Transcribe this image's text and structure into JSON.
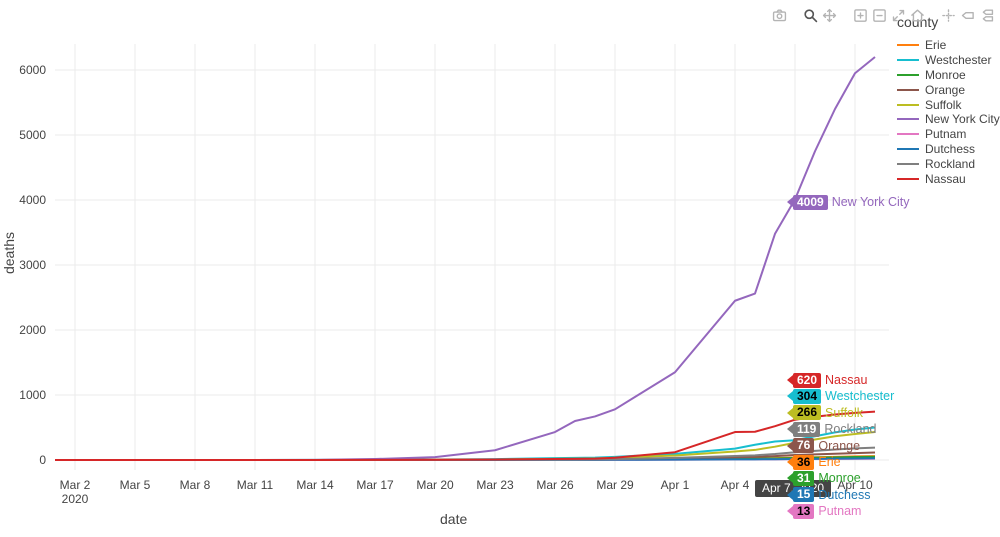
{
  "modebar": {
    "groups": [
      [
        "download-plot-camera"
      ],
      [
        "zoom",
        "pan"
      ],
      [
        "zoom-in",
        "zoom-out",
        "autoscale",
        "reset-axes-home"
      ],
      [
        "toggle-spike-lines",
        "show-closest-on-hover",
        "compare-data-on-hover"
      ]
    ],
    "active_button": "zoom",
    "icon_color": "#b4b4b4",
    "active_color": "#555555"
  },
  "legend": {
    "title": "county",
    "items": [
      {
        "label": "Erie",
        "color": "#ff7f0e",
        "contrast": "#000000"
      },
      {
        "label": "Westchester",
        "color": "#17becf",
        "contrast": "#000000"
      },
      {
        "label": "Monroe",
        "color": "#2ca02c",
        "contrast": "#ffffff"
      },
      {
        "label": "Orange",
        "color": "#8c564b",
        "contrast": "#ffffff"
      },
      {
        "label": "Suffolk",
        "color": "#bcbd22",
        "contrast": "#000000"
      },
      {
        "label": "New York City",
        "color": "#9467bd",
        "contrast": "#ffffff"
      },
      {
        "label": "Putnam",
        "color": "#e377c2",
        "contrast": "#000000"
      },
      {
        "label": "Dutchess",
        "color": "#1f77b4",
        "contrast": "#ffffff"
      },
      {
        "label": "Rockland",
        "color": "#7f7f7f",
        "contrast": "#ffffff"
      },
      {
        "label": "Nassau",
        "color": "#d62728",
        "contrast": "#ffffff"
      }
    ]
  },
  "axes": {
    "x": {
      "title": "date",
      "ticks": [
        {
          "label": "Mar 2",
          "day": 1,
          "year": "2020"
        },
        {
          "label": "Mar 5",
          "day": 4
        },
        {
          "label": "Mar 8",
          "day": 7
        },
        {
          "label": "Mar 11",
          "day": 10
        },
        {
          "label": "Mar 14",
          "day": 13
        },
        {
          "label": "Mar 17",
          "day": 16
        },
        {
          "label": "Mar 20",
          "day": 19
        },
        {
          "label": "Mar 23",
          "day": 22
        },
        {
          "label": "Mar 26",
          "day": 25
        },
        {
          "label": "Mar 29",
          "day": 28
        },
        {
          "label": "Apr 1",
          "day": 31
        },
        {
          "label": "Apr 4",
          "day": 34
        },
        {
          "label": "Apr 7",
          "day": 37
        },
        {
          "label": "Apr 10",
          "day": 40
        }
      ]
    },
    "y": {
      "title": "deaths",
      "ticks": [
        0,
        1000,
        2000,
        3000,
        4000,
        5000,
        6000
      ]
    }
  },
  "hover": {
    "axis_label": "Apr 7, 2020",
    "nyc_point": {
      "county": "New York City",
      "value": "4009"
    },
    "stack": [
      {
        "county": "Nassau",
        "value": "620"
      },
      {
        "county": "Westchester",
        "value": "304"
      },
      {
        "county": "Suffolk",
        "value": "266"
      },
      {
        "county": "Rockland",
        "value": "119"
      },
      {
        "county": "Orange",
        "value": "76"
      },
      {
        "county": "Erie",
        "value": "36"
      },
      {
        "county": "Monroe",
        "value": "31"
      },
      {
        "county": "Dutchess",
        "value": "15"
      },
      {
        "county": "Putnam",
        "value": "13"
      }
    ]
  },
  "chart_data": {
    "type": "line",
    "title": "",
    "xlabel": "date",
    "ylabel": "deaths",
    "x_start_date": "Mar 1 2020",
    "x_end_date": "Apr 11 2020",
    "ylim": [
      0,
      6400
    ],
    "grid": true,
    "legend_position": "right",
    "day_offsets": [
      0,
      4,
      9,
      13,
      16,
      19,
      22,
      25,
      26,
      27,
      28,
      31,
      34,
      35,
      36,
      37,
      38,
      39,
      40,
      41
    ],
    "dates": [
      "Mar 1",
      "Mar 5",
      "Mar 10",
      "Mar 14",
      "Mar 17",
      "Mar 20",
      "Mar 23",
      "Mar 26",
      "Mar 27",
      "Mar 28",
      "Mar 29",
      "Apr 1",
      "Apr 4",
      "Apr 5",
      "Apr 6",
      "Apr 7",
      "Apr 8",
      "Apr 9",
      "Apr 10",
      "Apr 11"
    ],
    "series": [
      {
        "name": "Erie",
        "values": [
          0,
          0,
          0,
          0,
          0,
          0,
          1,
          2,
          3,
          4,
          6,
          12,
          21,
          24,
          29,
          36,
          42,
          49,
          55,
          60
        ]
      },
      {
        "name": "Westchester",
        "values": [
          0,
          0,
          0,
          1,
          3,
          7,
          14,
          28,
          32,
          36,
          48,
          95,
          175,
          235,
          285,
          304,
          365,
          425,
          470,
          500
        ]
      },
      {
        "name": "Monroe",
        "values": [
          0,
          0,
          0,
          0,
          0,
          0,
          1,
          2,
          3,
          4,
          5,
          10,
          17,
          19,
          24,
          31,
          36,
          41,
          46,
          50
        ]
      },
      {
        "name": "Orange",
        "values": [
          0,
          0,
          0,
          0,
          0,
          1,
          2,
          4,
          5,
          6,
          10,
          22,
          42,
          48,
          60,
          76,
          86,
          96,
          106,
          115
        ]
      },
      {
        "name": "Suffolk",
        "values": [
          0,
          0,
          0,
          0,
          1,
          3,
          8,
          17,
          20,
          24,
          34,
          70,
          130,
          155,
          205,
          266,
          315,
          365,
          400,
          430
        ]
      },
      {
        "name": "New York City",
        "values": [
          0,
          0,
          0,
          1,
          15,
          45,
          150,
          430,
          600,
          670,
          780,
          1350,
          2450,
          2560,
          3480,
          4009,
          4750,
          5400,
          5950,
          6200
        ]
      },
      {
        "name": "Putnam",
        "values": [
          0,
          0,
          0,
          0,
          0,
          0,
          0,
          1,
          1,
          1,
          2,
          4,
          7,
          8,
          10,
          13,
          15,
          16,
          18,
          20
        ]
      },
      {
        "name": "Dutchess",
        "values": [
          0,
          0,
          0,
          0,
          0,
          0,
          0,
          1,
          1,
          2,
          3,
          6,
          9,
          10,
          12,
          15,
          18,
          21,
          23,
          26
        ]
      },
      {
        "name": "Rockland",
        "values": [
          0,
          0,
          0,
          0,
          0,
          1,
          3,
          6,
          7,
          9,
          13,
          32,
          62,
          72,
          92,
          119,
          140,
          162,
          178,
          190
        ]
      },
      {
        "name": "Nassau",
        "values": [
          0,
          0,
          0,
          0,
          1,
          3,
          8,
          16,
          18,
          22,
          35,
          120,
          430,
          435,
          520,
          620,
          665,
          700,
          725,
          745
        ]
      }
    ]
  }
}
